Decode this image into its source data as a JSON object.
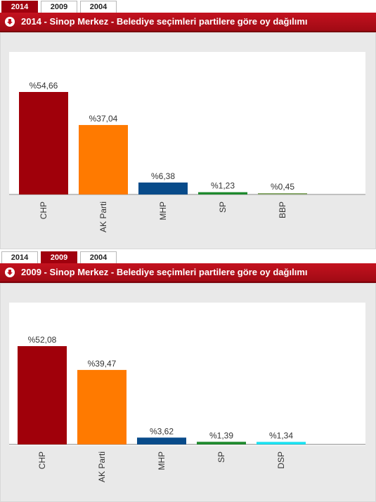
{
  "panels": [
    {
      "tabs": [
        {
          "label": "2014",
          "active": true
        },
        {
          "label": "2009",
          "active": false
        },
        {
          "label": "2004",
          "active": false
        }
      ],
      "header_title": "2014 - Sinop Merkez - Belediye seçimleri partilere göre oy dağılımı",
      "chart_data": {
        "type": "bar",
        "categories": [
          "CHP",
          "AK Parti",
          "MHP",
          "SP",
          "BBP"
        ],
        "values": [
          54.66,
          37.04,
          6.38,
          1.23,
          0.45
        ],
        "value_labels": [
          "%54,66",
          "%37,04",
          "%6,38",
          "%1,23",
          "%0,45"
        ],
        "colors": [
          "#a0000a",
          "#ff7a00",
          "#084b8a",
          "#1f8a2e",
          "#8aa86e"
        ],
        "ylim": [
          0,
          54.66
        ],
        "grid": false,
        "legend": "none"
      }
    },
    {
      "tabs": [
        {
          "label": "2014",
          "active": false
        },
        {
          "label": "2009",
          "active": true
        },
        {
          "label": "2004",
          "active": false
        }
      ],
      "header_title": "2009 - Sinop Merkez - Belediye seçimleri partilere göre oy dağılımı",
      "chart_data": {
        "type": "bar",
        "categories": [
          "CHP",
          "AK Parti",
          "MHP",
          "SP",
          "DSP"
        ],
        "values": [
          52.08,
          39.47,
          3.62,
          1.39,
          1.34
        ],
        "value_labels": [
          "%52,08",
          "%39,47",
          "%3,62",
          "%1,39",
          "%1,34"
        ],
        "colors": [
          "#a0000a",
          "#ff7a00",
          "#084b8a",
          "#1f8a2e",
          "#19e0f0"
        ],
        "ylim": [
          0,
          52.08
        ],
        "grid": false,
        "legend": "none"
      }
    }
  ]
}
